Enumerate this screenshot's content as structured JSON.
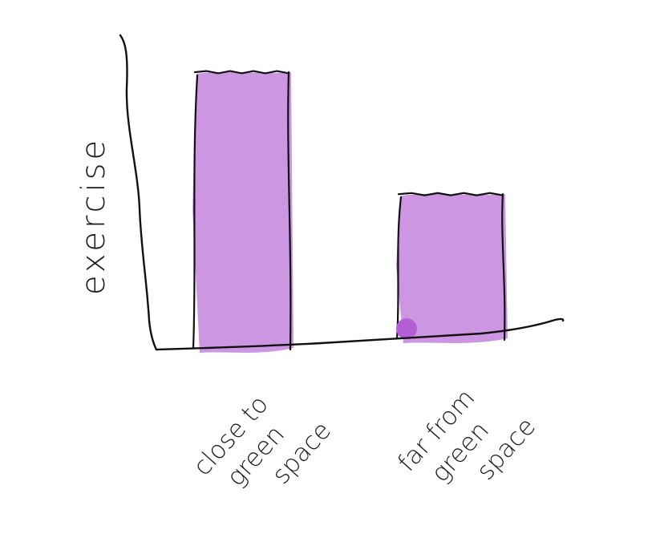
{
  "chart_data": {
    "type": "bar",
    "categories": [
      [
        "close to",
        "green",
        "space"
      ],
      [
        "far from",
        "green",
        "space"
      ]
    ],
    "values": [
      100,
      52
    ],
    "ylabel": "exercise",
    "xlabel": "",
    "title": "",
    "ylim": [
      0,
      100
    ],
    "grid": false,
    "bar_color": "#cc96e2",
    "bar_outline_color": "#111111",
    "dot_color": "#b45fd4"
  }
}
